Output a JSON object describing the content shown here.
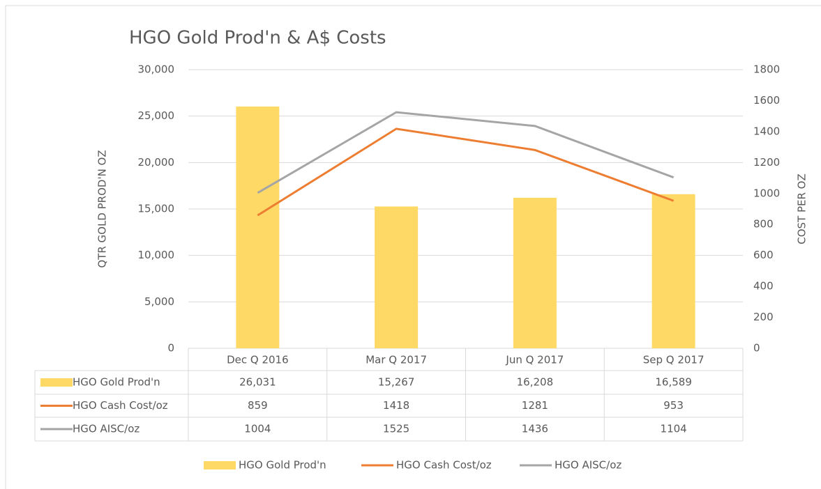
{
  "chart_data": {
    "type": "bar_line_table",
    "title": "HGO Gold Prod'n & A$ Costs",
    "y_label": "QTR GOLD PROD'N OZ",
    "y2_label": "COST PER OZ",
    "categories": [
      "Dec Q 2016",
      "Mar Q 2017",
      "Jun Q 2017",
      "Sep Q 2017"
    ],
    "series": [
      {
        "name": "HGO Gold Prod'n",
        "type": "bar",
        "color": "#FFD966",
        "values": [
          26031,
          15267,
          16208,
          16589
        ],
        "value_labels": [
          "26,031",
          "15,267",
          "16,208",
          "16,589"
        ]
      },
      {
        "name": "HGO Cash Cost/oz",
        "type": "line",
        "axis": "y2",
        "color": "#ED7D31",
        "values": [
          859,
          1418,
          1281,
          953
        ]
      },
      {
        "name": "HGO AISC/oz",
        "type": "line",
        "axis": "y2",
        "color": "#A5A5A5",
        "values": [
          1004,
          1525,
          1436,
          1104
        ]
      }
    ],
    "ylim": [
      0,
      30000
    ],
    "yticks": [
      0,
      {
        "value": 5000,
        "label": "5,000"
      },
      {
        "value": 10000,
        "label": "10,000"
      },
      {
        "value": 15000,
        "label": "15,000"
      },
      {
        "value": 20000,
        "label": "20,000"
      },
      {
        "value": 25000,
        "label": "25,000"
      },
      {
        "value": 30000,
        "label": "30,000"
      }
    ],
    "y2lim": [
      0,
      1800
    ],
    "y2ticks": [
      0,
      200,
      400,
      600,
      800,
      1000,
      1200,
      1400,
      1600,
      1800
    ],
    "grid": true,
    "legend": "bottom"
  }
}
